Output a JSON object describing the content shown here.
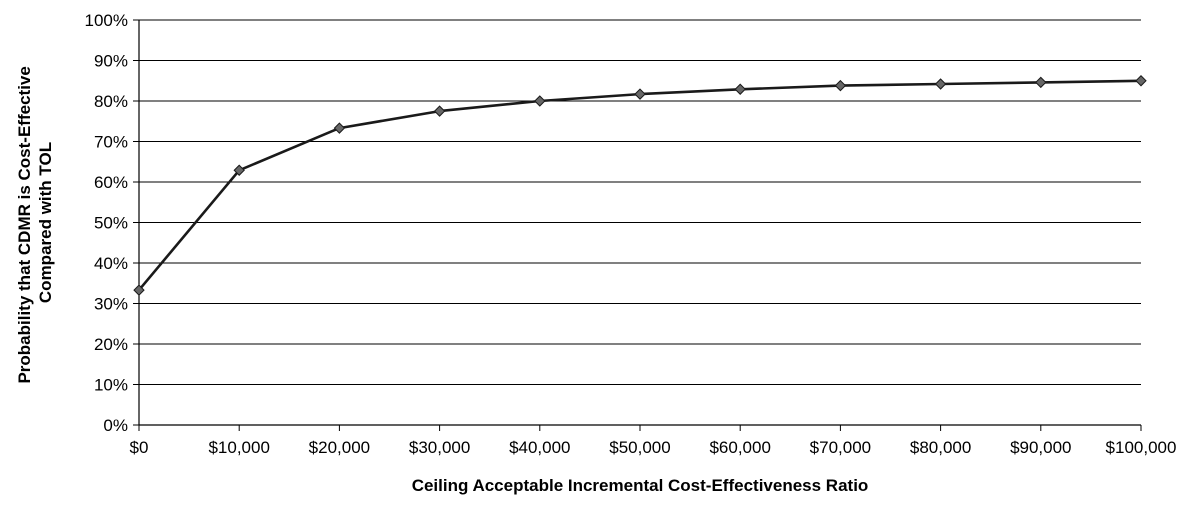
{
  "chart_data": {
    "type": "line",
    "title": "",
    "xlabel": "Ceiling Acceptable Incremental Cost-Effectiveness Ratio",
    "ylabel_lines": [
      "Probability that CDMR is Cost-Effective",
      "Compared with TOL"
    ],
    "x": [
      0,
      10000,
      20000,
      30000,
      40000,
      50000,
      60000,
      70000,
      80000,
      90000,
      100000
    ],
    "x_tick_labels": [
      "$0",
      "$10,000",
      "$20,000",
      "$30,000",
      "$40,000",
      "$50,000",
      "$60,000",
      "$70,000",
      "$80,000",
      "$90,000",
      "$100,000"
    ],
    "y_tick_labels": [
      "0%",
      "10%",
      "20%",
      "30%",
      "40%",
      "50%",
      "60%",
      "70%",
      "80%",
      "90%",
      "100%"
    ],
    "xlim": [
      0,
      100000
    ],
    "ylim": [
      0,
      100
    ],
    "grid": "horizontal",
    "legend": "none",
    "series": [
      {
        "values": [
          33.3,
          62.9,
          73.3,
          77.5,
          80.0,
          81.7,
          82.9,
          83.8,
          84.2,
          84.6,
          85.0
        ],
        "color": "#1a1a1a",
        "marker": "diamond"
      }
    ]
  }
}
